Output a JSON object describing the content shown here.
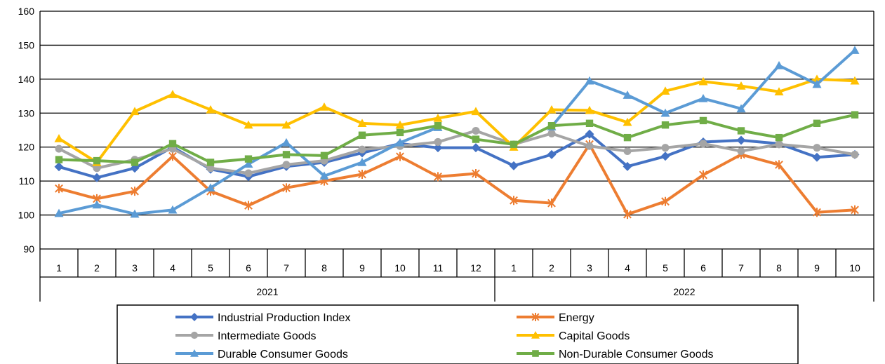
{
  "chart_data": {
    "type": "line",
    "ylim": [
      90,
      160
    ],
    "yticks": [
      90,
      100,
      110,
      120,
      130,
      140,
      150,
      160
    ],
    "grid": true,
    "legend_position": "bottom",
    "categories": [
      "1",
      "2",
      "3",
      "4",
      "5",
      "6",
      "7",
      "8",
      "9",
      "10",
      "11",
      "12",
      "1",
      "2",
      "3",
      "4",
      "5",
      "6",
      "7",
      "8",
      "9",
      "10"
    ],
    "groups": [
      {
        "label": "2021",
        "count": 12
      },
      {
        "label": "2022",
        "count": 10
      }
    ],
    "series": [
      {
        "name": "Industrial Production Index",
        "color": "#4472C4",
        "marker": "diamond",
        "values": [
          114.2,
          111.0,
          113.8,
          120.0,
          113.5,
          111.3,
          114.3,
          115.5,
          118.3,
          121.0,
          119.8,
          119.8,
          114.5,
          117.8,
          123.8,
          114.3,
          117.3,
          121.5,
          122.0,
          121.0,
          117.0,
          117.8
        ]
      },
      {
        "name": "Energy",
        "color": "#ED7D31",
        "marker": "star",
        "values": [
          107.8,
          104.8,
          107.0,
          117.3,
          107.0,
          102.8,
          108.0,
          110.0,
          112.0,
          117.2,
          111.3,
          112.2,
          104.3,
          103.5,
          120.8,
          100.2,
          104.0,
          111.8,
          117.8,
          114.8,
          100.8,
          101.5
        ]
      },
      {
        "name": "Intermediate Goods",
        "color": "#A5A5A5",
        "marker": "circle",
        "values": [
          119.5,
          113.8,
          116.3,
          119.5,
          113.8,
          112.3,
          114.8,
          116.0,
          119.3,
          120.3,
          121.5,
          124.8,
          120.8,
          124.0,
          120.3,
          118.8,
          119.8,
          121.0,
          118.8,
          120.8,
          119.8,
          117.8
        ]
      },
      {
        "name": "Capital Goods",
        "color": "#FFC000",
        "marker": "triangle",
        "values": [
          122.5,
          115.5,
          130.5,
          135.5,
          131.0,
          126.5,
          126.5,
          131.8,
          127.0,
          126.5,
          128.5,
          130.5,
          120.0,
          131.0,
          130.8,
          127.3,
          136.5,
          139.3,
          138.0,
          136.3,
          140.0,
          139.5
        ]
      },
      {
        "name": "Durable Consumer Goods",
        "color": "#5B9BD5",
        "marker": "triangle",
        "values": [
          100.5,
          103.0,
          100.3,
          101.5,
          108.0,
          115.0,
          121.3,
          111.5,
          115.5,
          121.3,
          125.8,
          null,
          null,
          126.0,
          139.5,
          135.3,
          130.0,
          134.3,
          131.3,
          144.0,
          138.5,
          148.5
        ]
      },
      {
        "name": "Non-Durable Consumer Goods",
        "color": "#70AD47",
        "marker": "square",
        "values": [
          116.3,
          116.0,
          115.5,
          121.0,
          115.5,
          116.5,
          117.8,
          117.5,
          123.5,
          124.3,
          126.3,
          122.3,
          120.8,
          126.3,
          127.0,
          122.8,
          126.5,
          127.8,
          124.8,
          122.8,
          127.0,
          129.5
        ]
      }
    ]
  }
}
